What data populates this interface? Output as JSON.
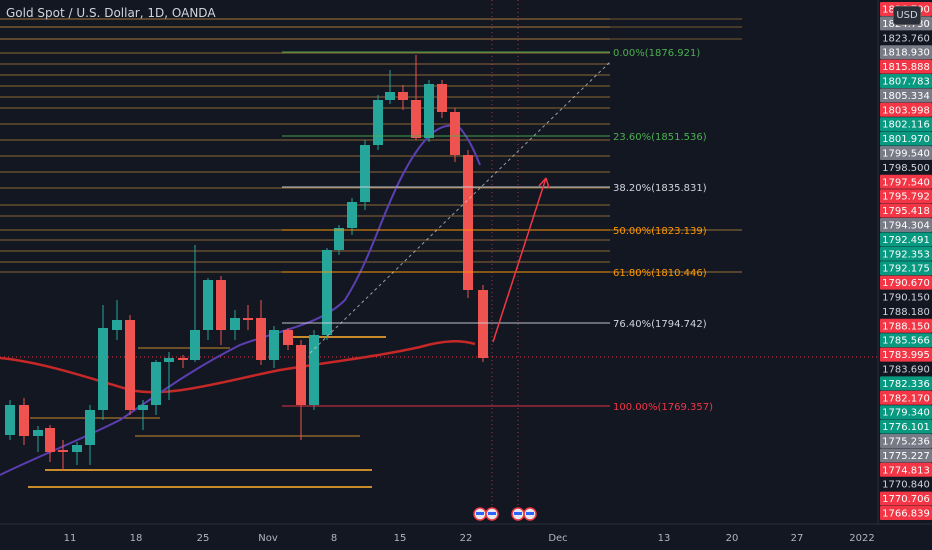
{
  "header": {
    "title": "Gold Spot / U.S. Dollar, 1D, OANDA",
    "currency": "USD"
  },
  "price_axis": [
    {
      "label": "1826.790",
      "bg": "#f23645",
      "fg": "#ffffff"
    },
    {
      "label": "1824.730",
      "bg": "#787b86",
      "fg": "#ffffff"
    },
    {
      "label": "1823.760",
      "bg": "#131722",
      "fg": "#d1d4dc"
    },
    {
      "label": "1818.930",
      "bg": "#787b86",
      "fg": "#ffffff"
    },
    {
      "label": "1815.888",
      "bg": "#f23645",
      "fg": "#ffffff"
    },
    {
      "label": "1807.783",
      "bg": "#089981",
      "fg": "#ffffff"
    },
    {
      "label": "1805.334",
      "bg": "#787b86",
      "fg": "#ffffff"
    },
    {
      "label": "1803.998",
      "bg": "#f23645",
      "fg": "#ffffff"
    },
    {
      "label": "1802.116",
      "bg": "#089981",
      "fg": "#ffffff"
    },
    {
      "label": "1801.970",
      "bg": "#089981",
      "fg": "#ffffff"
    },
    {
      "label": "1799.540",
      "bg": "#787b86",
      "fg": "#ffffff"
    },
    {
      "label": "1798.500",
      "bg": "#131722",
      "fg": "#d1d4dc"
    },
    {
      "label": "1797.540",
      "bg": "#f23645",
      "fg": "#ffffff"
    },
    {
      "label": "1795.792",
      "bg": "#f23645",
      "fg": "#ffffff"
    },
    {
      "label": "1795.418",
      "bg": "#f23645",
      "fg": "#ffffff"
    },
    {
      "label": "1794.304",
      "bg": "#787b86",
      "fg": "#ffffff"
    },
    {
      "label": "1792.491",
      "bg": "#089981",
      "fg": "#ffffff"
    },
    {
      "label": "1792.353",
      "bg": "#089981",
      "fg": "#ffffff"
    },
    {
      "label": "1792.175",
      "bg": "#089981",
      "fg": "#ffffff"
    },
    {
      "label": "1790.670",
      "bg": "#f23645",
      "fg": "#ffffff"
    },
    {
      "label": "1790.150",
      "bg": "#131722",
      "fg": "#d1d4dc"
    },
    {
      "label": "1788.180",
      "bg": "#131722",
      "fg": "#d1d4dc"
    },
    {
      "label": "1788.150",
      "bg": "#f23645",
      "fg": "#ffffff"
    },
    {
      "label": "1785.566",
      "bg": "#089981",
      "fg": "#ffffff"
    },
    {
      "label": "1783.995",
      "bg": "#f23645",
      "fg": "#ffffff"
    },
    {
      "label": "1783.690",
      "bg": "#131722",
      "fg": "#d1d4dc"
    },
    {
      "label": "1782.336",
      "bg": "#089981",
      "fg": "#ffffff"
    },
    {
      "label": "1782.170",
      "bg": "#f23645",
      "fg": "#ffffff"
    },
    {
      "label": "1779.340",
      "bg": "#089981",
      "fg": "#ffffff"
    },
    {
      "label": "1776.101",
      "bg": "#089981",
      "fg": "#ffffff"
    },
    {
      "label": "1775.236",
      "bg": "#787b86",
      "fg": "#ffffff"
    },
    {
      "label": "1775.227",
      "bg": "#787b86",
      "fg": "#ffffff"
    },
    {
      "label": "1774.813",
      "bg": "#f23645",
      "fg": "#ffffff"
    },
    {
      "label": "1770.840",
      "bg": "#131722",
      "fg": "#d1d4dc"
    },
    {
      "label": "1770.706",
      "bg": "#f23645",
      "fg": "#ffffff"
    },
    {
      "label": "1766.839",
      "bg": "#f23645",
      "fg": "#ffffff"
    }
  ],
  "fib_levels": [
    {
      "label": "0.00%(1876.921)",
      "color": "#4caf50"
    },
    {
      "label": "23.60%(1851.536)",
      "color": "#4caf50"
    },
    {
      "label": "38.20%(1835.831)",
      "color": "#d1d4dc"
    },
    {
      "label": "50.00%(1823.139)",
      "color": "#ff9800"
    },
    {
      "label": "61.80%(1810.446)",
      "color": "#ff9800"
    },
    {
      "label": "76.40%(1794.742)",
      "color": "#d1d4dc"
    },
    {
      "label": "100.00%(1769.357)",
      "color": "#f23645"
    }
  ],
  "x_axis": [
    "11",
    "18",
    "25",
    "Nov",
    "8",
    "15",
    "22",
    "Dec",
    "13",
    "20",
    "27",
    "2022"
  ],
  "colors": {
    "up": "#26a69a",
    "down": "#ef5350",
    "ma": "#c62828",
    "ma2": "#5b3fb0",
    "hline": "#b8863b",
    "bg": "#131722"
  },
  "icons": [
    "flag-event-icon",
    "flag-event-icon",
    "flag-event-icon",
    "flag-event-icon"
  ]
}
